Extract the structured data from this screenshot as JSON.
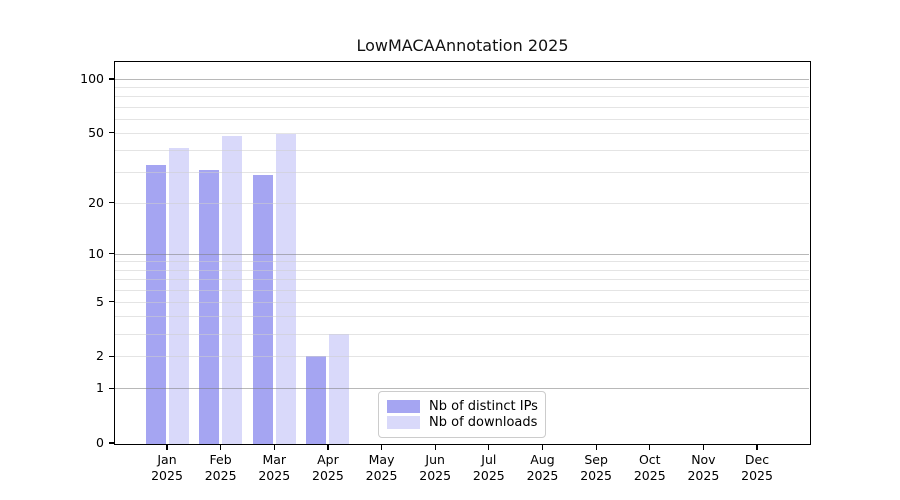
{
  "title": "LowMACAAnnotation 2025",
  "chart_data": {
    "type": "bar",
    "title": "LowMACAAnnotation 2025",
    "categories": [
      "Jan",
      "Feb",
      "Mar",
      "Apr",
      "May",
      "Jun",
      "Jul",
      "Aug",
      "Sep",
      "Oct",
      "Nov",
      "Dec"
    ],
    "x_sublabel_year": "2025",
    "series": [
      {
        "name": "Nb of distinct IPs",
        "color": "#a5a5f2",
        "values": [
          33,
          31,
          29,
          2,
          0,
          0,
          0,
          0,
          0,
          0,
          0,
          0
        ]
      },
      {
        "name": "Nb of downloads",
        "color": "#d9d9fa",
        "values": [
          41,
          48,
          49,
          3,
          0,
          0,
          0,
          0,
          0,
          0,
          0,
          0
        ]
      }
    ],
    "xlabel": "",
    "ylabel": "",
    "y_axis": {
      "scale": "log1p",
      "ticks": [
        0,
        1,
        2,
        5,
        10,
        20,
        50,
        100
      ],
      "major_gridlines": [
        1,
        10,
        100
      ],
      "minor_gridlines": [
        2,
        3,
        4,
        5,
        6,
        7,
        8,
        9,
        20,
        30,
        40,
        50,
        60,
        70,
        80,
        90
      ],
      "ylim": [
        0,
        127
      ],
      "grid": true,
      "grid_over_bars": true
    },
    "legend": {
      "position": "lower-center",
      "entries": [
        "Nb of distinct IPs",
        "Nb of downloads"
      ]
    }
  },
  "colors": {
    "background": "#ffffff",
    "axis_frame": "#000000",
    "distinct_ips": "#a5a5f2",
    "downloads": "#d9d9fa",
    "minor_grid": "#e6e6e6",
    "major_grid": "#bdbdbd",
    "legend_border": "#cccccc",
    "text": "#000000"
  }
}
